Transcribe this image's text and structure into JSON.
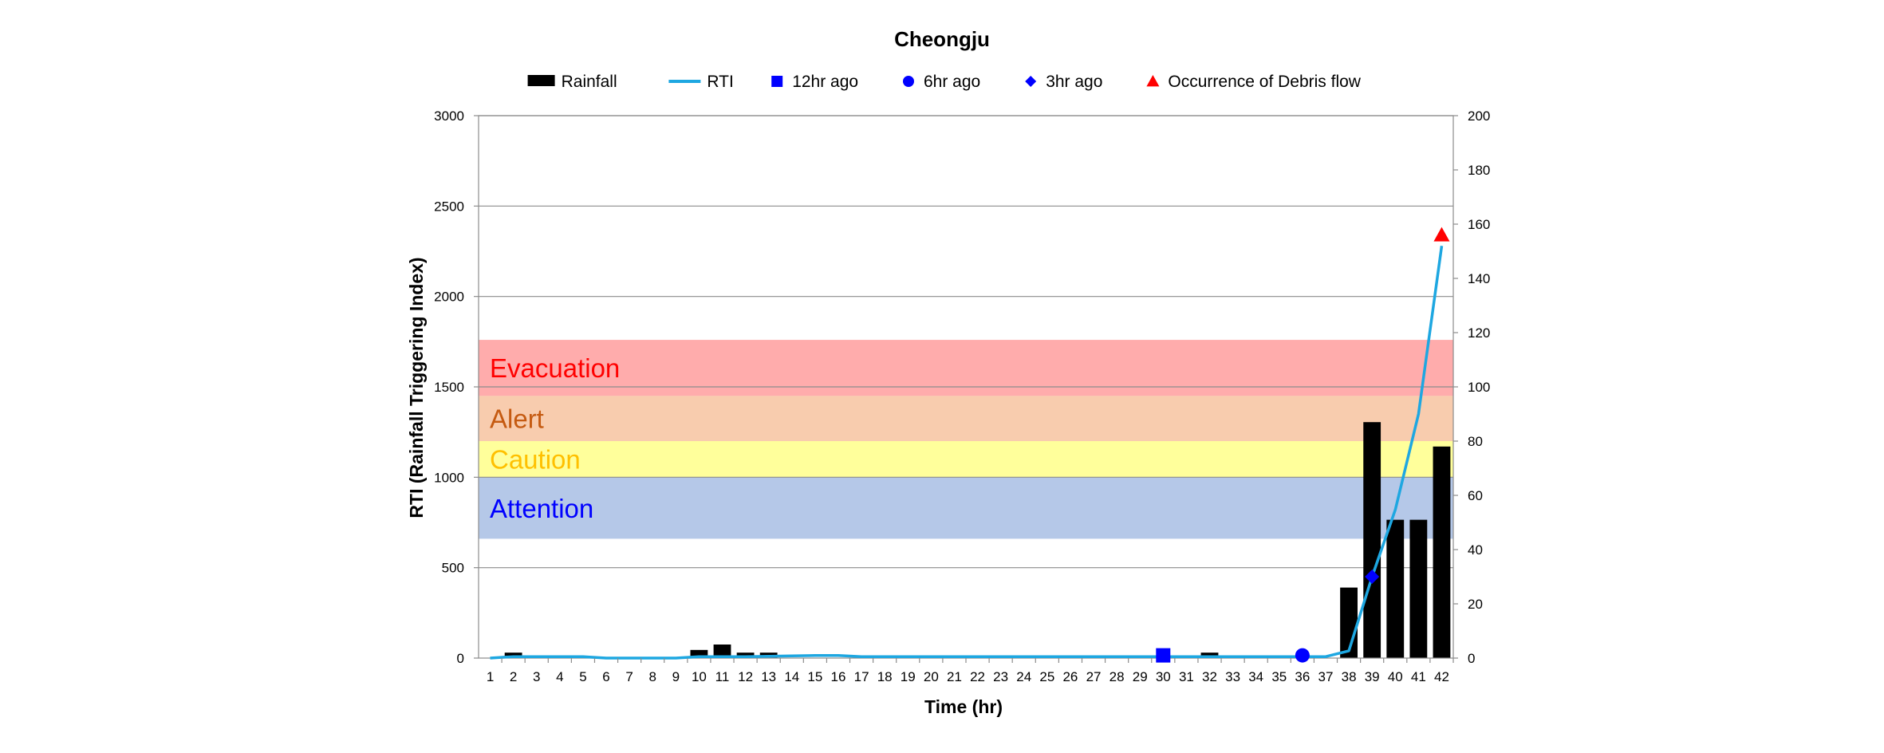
{
  "chart_data": {
    "type": "bar",
    "title": "Cheongju",
    "xlabel": "Time (hr)",
    "ylabel": "RTI (Rainfall Triggering Index)",
    "y2label": "",
    "ylim": [
      0,
      3000
    ],
    "y2lim": [
      0,
      200
    ],
    "yticks": [
      "0",
      "500",
      "1000",
      "1500",
      "2000",
      "2500",
      "3000"
    ],
    "y2ticks": [
      "0",
      "20",
      "40",
      "60",
      "80",
      "100",
      "120",
      "140",
      "160",
      "180",
      "200"
    ],
    "grid": true,
    "legend_position": "top",
    "legend": [
      "Rainfall",
      "RTI",
      "12hr ago",
      "6hr ago",
      "3hr ago",
      "Occurrence of Debris flow"
    ],
    "categories": [
      "1",
      "2",
      "3",
      "4",
      "5",
      "6",
      "7",
      "8",
      "9",
      "10",
      "11",
      "12",
      "13",
      "14",
      "15",
      "16",
      "17",
      "18",
      "19",
      "20",
      "21",
      "22",
      "23",
      "24",
      "25",
      "26",
      "27",
      "28",
      "29",
      "30",
      "31",
      "32",
      "33",
      "34",
      "35",
      "36",
      "37",
      "38",
      "39",
      "40",
      "41",
      "42"
    ],
    "zones": [
      {
        "label": "Evacuation",
        "from": 1450,
        "to": 1760,
        "fill": "#ff7f7f",
        "text_color": "#ff0000"
      },
      {
        "label": "Alert",
        "from": 1200,
        "to": 1450,
        "fill": "#f4b183",
        "text_color": "#c55a11"
      },
      {
        "label": "Caution",
        "from": 1000,
        "to": 1200,
        "fill": "#ffff66",
        "text_color": "#ffc000"
      },
      {
        "label": "Attention",
        "from": 660,
        "to": 1000,
        "fill": "#8eaadb",
        "text_color": "#0000ff"
      }
    ],
    "series": [
      {
        "name": "Rainfall",
        "kind": "bar",
        "axis": "right",
        "color": "#000000",
        "values": [
          0,
          2,
          0,
          0,
          0,
          0,
          0,
          0,
          0,
          3,
          5,
          2,
          2,
          0,
          0,
          0,
          0,
          0,
          0,
          0,
          0,
          0,
          0,
          0,
          0,
          0,
          0,
          0,
          0,
          0,
          0,
          2,
          0,
          0,
          0,
          0,
          0,
          26,
          87,
          51,
          51,
          78
        ]
      },
      {
        "name": "RTI",
        "kind": "line",
        "axis": "left",
        "color": "#1ea7e1",
        "values": [
          0,
          8,
          8,
          8,
          8,
          0,
          0,
          0,
          0,
          8,
          8,
          8,
          10,
          12,
          14,
          14,
          8,
          8,
          8,
          8,
          8,
          8,
          8,
          8,
          8,
          8,
          8,
          8,
          8,
          8,
          8,
          8,
          8,
          8,
          8,
          8,
          8,
          40,
          450,
          820,
          1350,
          2280
        ]
      },
      {
        "name": "12hr ago",
        "kind": "marker",
        "shape": "square",
        "color": "#0000ff",
        "x": "30",
        "y": 15
      },
      {
        "name": "6hr ago",
        "kind": "marker",
        "shape": "circle",
        "color": "#0000ff",
        "x": "36",
        "y": 15
      },
      {
        "name": "3hr ago",
        "kind": "marker",
        "shape": "diamond",
        "color": "#0000ff",
        "x": "39",
        "y": 450
      },
      {
        "name": "Occurrence of Debris flow",
        "kind": "marker",
        "shape": "triangle",
        "color": "#ff0000",
        "x": "42",
        "y": 2340
      }
    ]
  }
}
